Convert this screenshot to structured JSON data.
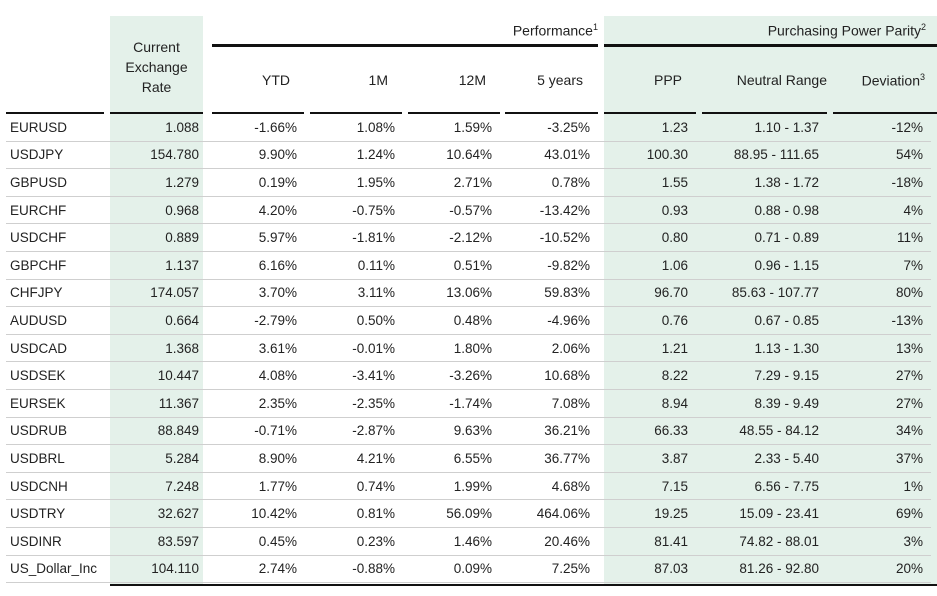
{
  "header": {
    "current_rate": [
      "Current",
      "Exchange",
      "Rate"
    ],
    "performance": "Performance",
    "performance_note": "1",
    "ppp_group": "Purchasing Power Parity",
    "ppp_group_note": "2",
    "columns": {
      "ytd": "YTD",
      "m1": "1M",
      "m12": "12M",
      "y5": "5 years",
      "ppp": "PPP",
      "neutral": "Neutral Range",
      "deviation": "Deviation",
      "deviation_note": "3"
    }
  },
  "rows": [
    {
      "pair": "EURUSD",
      "rate": "1.088",
      "ytd": "-1.66%",
      "m1": "1.08%",
      "m12": "1.59%",
      "y5": "-3.25%",
      "ppp": "1.23",
      "range": "1.10 - 1.37",
      "dev": "-12%"
    },
    {
      "pair": "USDJPY",
      "rate": "154.780",
      "ytd": "9.90%",
      "m1": "1.24%",
      "m12": "10.64%",
      "y5": "43.01%",
      "ppp": "100.30",
      "range": "88.95 - 111.65",
      "dev": "54%"
    },
    {
      "pair": "GBPUSD",
      "rate": "1.279",
      "ytd": "0.19%",
      "m1": "1.95%",
      "m12": "2.71%",
      "y5": "0.78%",
      "ppp": "1.55",
      "range": "1.38 - 1.72",
      "dev": "-18%"
    },
    {
      "pair": "EURCHF",
      "rate": "0.968",
      "ytd": "4.20%",
      "m1": "-0.75%",
      "m12": "-0.57%",
      "y5": "-13.42%",
      "ppp": "0.93",
      "range": "0.88 - 0.98",
      "dev": "4%"
    },
    {
      "pair": "USDCHF",
      "rate": "0.889",
      "ytd": "5.97%",
      "m1": "-1.81%",
      "m12": "-2.12%",
      "y5": "-10.52%",
      "ppp": "0.80",
      "range": "0.71 - 0.89",
      "dev": "11%"
    },
    {
      "pair": "GBPCHF",
      "rate": "1.137",
      "ytd": "6.16%",
      "m1": "0.11%",
      "m12": "0.51%",
      "y5": "-9.82%",
      "ppp": "1.06",
      "range": "0.96 - 1.15",
      "dev": "7%"
    },
    {
      "pair": "CHFJPY",
      "rate": "174.057",
      "ytd": "3.70%",
      "m1": "3.11%",
      "m12": "13.06%",
      "y5": "59.83%",
      "ppp": "96.70",
      "range": "85.63 - 107.77",
      "dev": "80%"
    },
    {
      "pair": "AUDUSD",
      "rate": "0.664",
      "ytd": "-2.79%",
      "m1": "0.50%",
      "m12": "0.48%",
      "y5": "-4.96%",
      "ppp": "0.76",
      "range": "0.67 - 0.85",
      "dev": "-13%"
    },
    {
      "pair": "USDCAD",
      "rate": "1.368",
      "ytd": "3.61%",
      "m1": "-0.01%",
      "m12": "1.80%",
      "y5": "2.06%",
      "ppp": "1.21",
      "range": "1.13 - 1.30",
      "dev": "13%"
    },
    {
      "pair": "USDSEK",
      "rate": "10.447",
      "ytd": "4.08%",
      "m1": "-3.41%",
      "m12": "-3.26%",
      "y5": "10.68%",
      "ppp": "8.22",
      "range": "7.29 - 9.15",
      "dev": "27%"
    },
    {
      "pair": "EURSEK",
      "rate": "11.367",
      "ytd": "2.35%",
      "m1": "-2.35%",
      "m12": "-1.74%",
      "y5": "7.08%",
      "ppp": "8.94",
      "range": "8.39 - 9.49",
      "dev": "27%"
    },
    {
      "pair": "USDRUB",
      "rate": "88.849",
      "ytd": "-0.71%",
      "m1": "-2.87%",
      "m12": "9.63%",
      "y5": "36.21%",
      "ppp": "66.33",
      "range": "48.55 - 84.12",
      "dev": "34%"
    },
    {
      "pair": "USDBRL",
      "rate": "5.284",
      "ytd": "8.90%",
      "m1": "4.21%",
      "m12": "6.55%",
      "y5": "36.77%",
      "ppp": "3.87",
      "range": "2.33 - 5.40",
      "dev": "37%"
    },
    {
      "pair": "USDCNH",
      "rate": "7.248",
      "ytd": "1.77%",
      "m1": "0.74%",
      "m12": "1.99%",
      "y5": "4.68%",
      "ppp": "7.15",
      "range": "6.56 - 7.75",
      "dev": "1%"
    },
    {
      "pair": "USDTRY",
      "rate": "32.627",
      "ytd": "10.42%",
      "m1": "0.81%",
      "m12": "56.09%",
      "y5": "464.06%",
      "ppp": "19.25",
      "range": "15.09 - 23.41",
      "dev": "69%"
    },
    {
      "pair": "USDINR",
      "rate": "83.597",
      "ytd": "0.45%",
      "m1": "0.23%",
      "m12": "1.46%",
      "y5": "20.46%",
      "ppp": "81.41",
      "range": "74.82 - 88.01",
      "dev": "3%"
    },
    {
      "pair": "US_Dollar_Inc",
      "rate": "104.110",
      "ytd": "2.74%",
      "m1": "-0.88%",
      "m12": "0.09%",
      "y5": "7.25%",
      "ppp": "87.03",
      "range": "81.26 - 92.80",
      "dev": "20%"
    }
  ]
}
